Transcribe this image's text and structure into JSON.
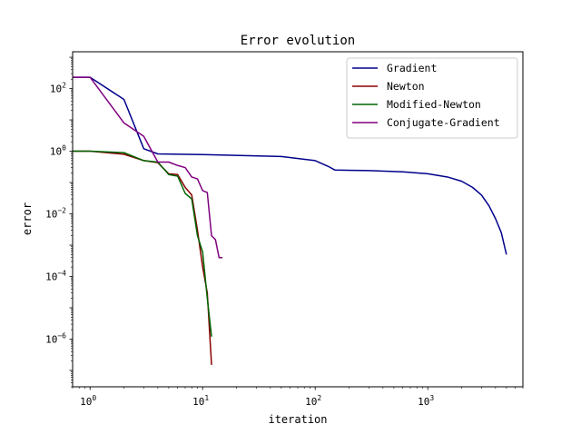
{
  "chart_data": {
    "type": "line",
    "title": "Error evolution",
    "xlabel": "iteration",
    "ylabel": "error",
    "xscale": "log",
    "yscale": "log",
    "xlim": [
      0.7,
      7000
    ],
    "ylim": [
      3e-08,
      1500
    ],
    "grid": false,
    "legend_position": "top-right",
    "x_ticks": [
      {
        "value": 1,
        "base": "10",
        "exp": "0"
      },
      {
        "value": 10,
        "base": "10",
        "exp": "1"
      },
      {
        "value": 100,
        "base": "10",
        "exp": "2"
      },
      {
        "value": 1000,
        "base": "10",
        "exp": "3"
      }
    ],
    "y_ticks": [
      {
        "value": 100,
        "base": "10",
        "exp": "2"
      },
      {
        "value": 1,
        "base": "10",
        "exp": "0"
      },
      {
        "value": 0.01,
        "base": "10",
        "exp": "−2"
      },
      {
        "value": 0.0001,
        "base": "10",
        "exp": "−4"
      },
      {
        "value": 1e-06,
        "base": "10",
        "exp": "−6"
      }
    ],
    "series": [
      {
        "name": "Gradient",
        "color": "#00008b",
        "points": [
          [
            0.5,
            230
          ],
          [
            1,
            230
          ],
          [
            2,
            45
          ],
          [
            3,
            1.2
          ],
          [
            4,
            0.82
          ],
          [
            10,
            0.78
          ],
          [
            50,
            0.68
          ],
          [
            100,
            0.5
          ],
          [
            130,
            0.33
          ],
          [
            150,
            0.25
          ],
          [
            300,
            0.24
          ],
          [
            600,
            0.22
          ],
          [
            1000,
            0.19
          ],
          [
            1500,
            0.15
          ],
          [
            2000,
            0.11
          ],
          [
            2500,
            0.07
          ],
          [
            3000,
            0.04
          ],
          [
            3500,
            0.018
          ],
          [
            4000,
            0.007
          ],
          [
            4500,
            0.0025
          ],
          [
            5000,
            0.0005
          ]
        ]
      },
      {
        "name": "Newton",
        "color": "#8b0000",
        "points": [
          [
            0.5,
            1
          ],
          [
            1,
            1
          ],
          [
            2,
            0.8
          ],
          [
            3,
            0.5
          ],
          [
            4,
            0.43
          ],
          [
            5,
            0.19
          ],
          [
            6,
            0.18
          ],
          [
            7,
            0.07
          ],
          [
            8,
            0.04
          ],
          [
            9,
            0.003
          ],
          [
            10,
            0.0002
          ],
          [
            11,
            3e-05
          ],
          [
            12,
            1.5e-07
          ]
        ]
      },
      {
        "name": "Modified-Newton",
        "color": "#006400",
        "points": [
          [
            0.5,
            1
          ],
          [
            1,
            1
          ],
          [
            2,
            0.9
          ],
          [
            3,
            0.5
          ],
          [
            4,
            0.45
          ],
          [
            5,
            0.18
          ],
          [
            6,
            0.16
          ],
          [
            7,
            0.045
          ],
          [
            8,
            0.03
          ],
          [
            9,
            0.002
          ],
          [
            10,
            0.0006
          ],
          [
            11,
            2e-05
          ],
          [
            12,
            1.2e-06
          ]
        ]
      },
      {
        "name": "Conjugate-Gradient",
        "color": "#800080",
        "points": [
          [
            0.5,
            230
          ],
          [
            1,
            230
          ],
          [
            2,
            8
          ],
          [
            3,
            3
          ],
          [
            4,
            0.45
          ],
          [
            5,
            0.45
          ],
          [
            6,
            0.35
          ],
          [
            7,
            0.3
          ],
          [
            8,
            0.15
          ],
          [
            9,
            0.13
          ],
          [
            10,
            0.055
          ],
          [
            11,
            0.048
          ],
          [
            12,
            0.002
          ],
          [
            13,
            0.0015
          ],
          [
            14,
            0.0004
          ],
          [
            15,
            0.0004
          ]
        ]
      }
    ]
  }
}
